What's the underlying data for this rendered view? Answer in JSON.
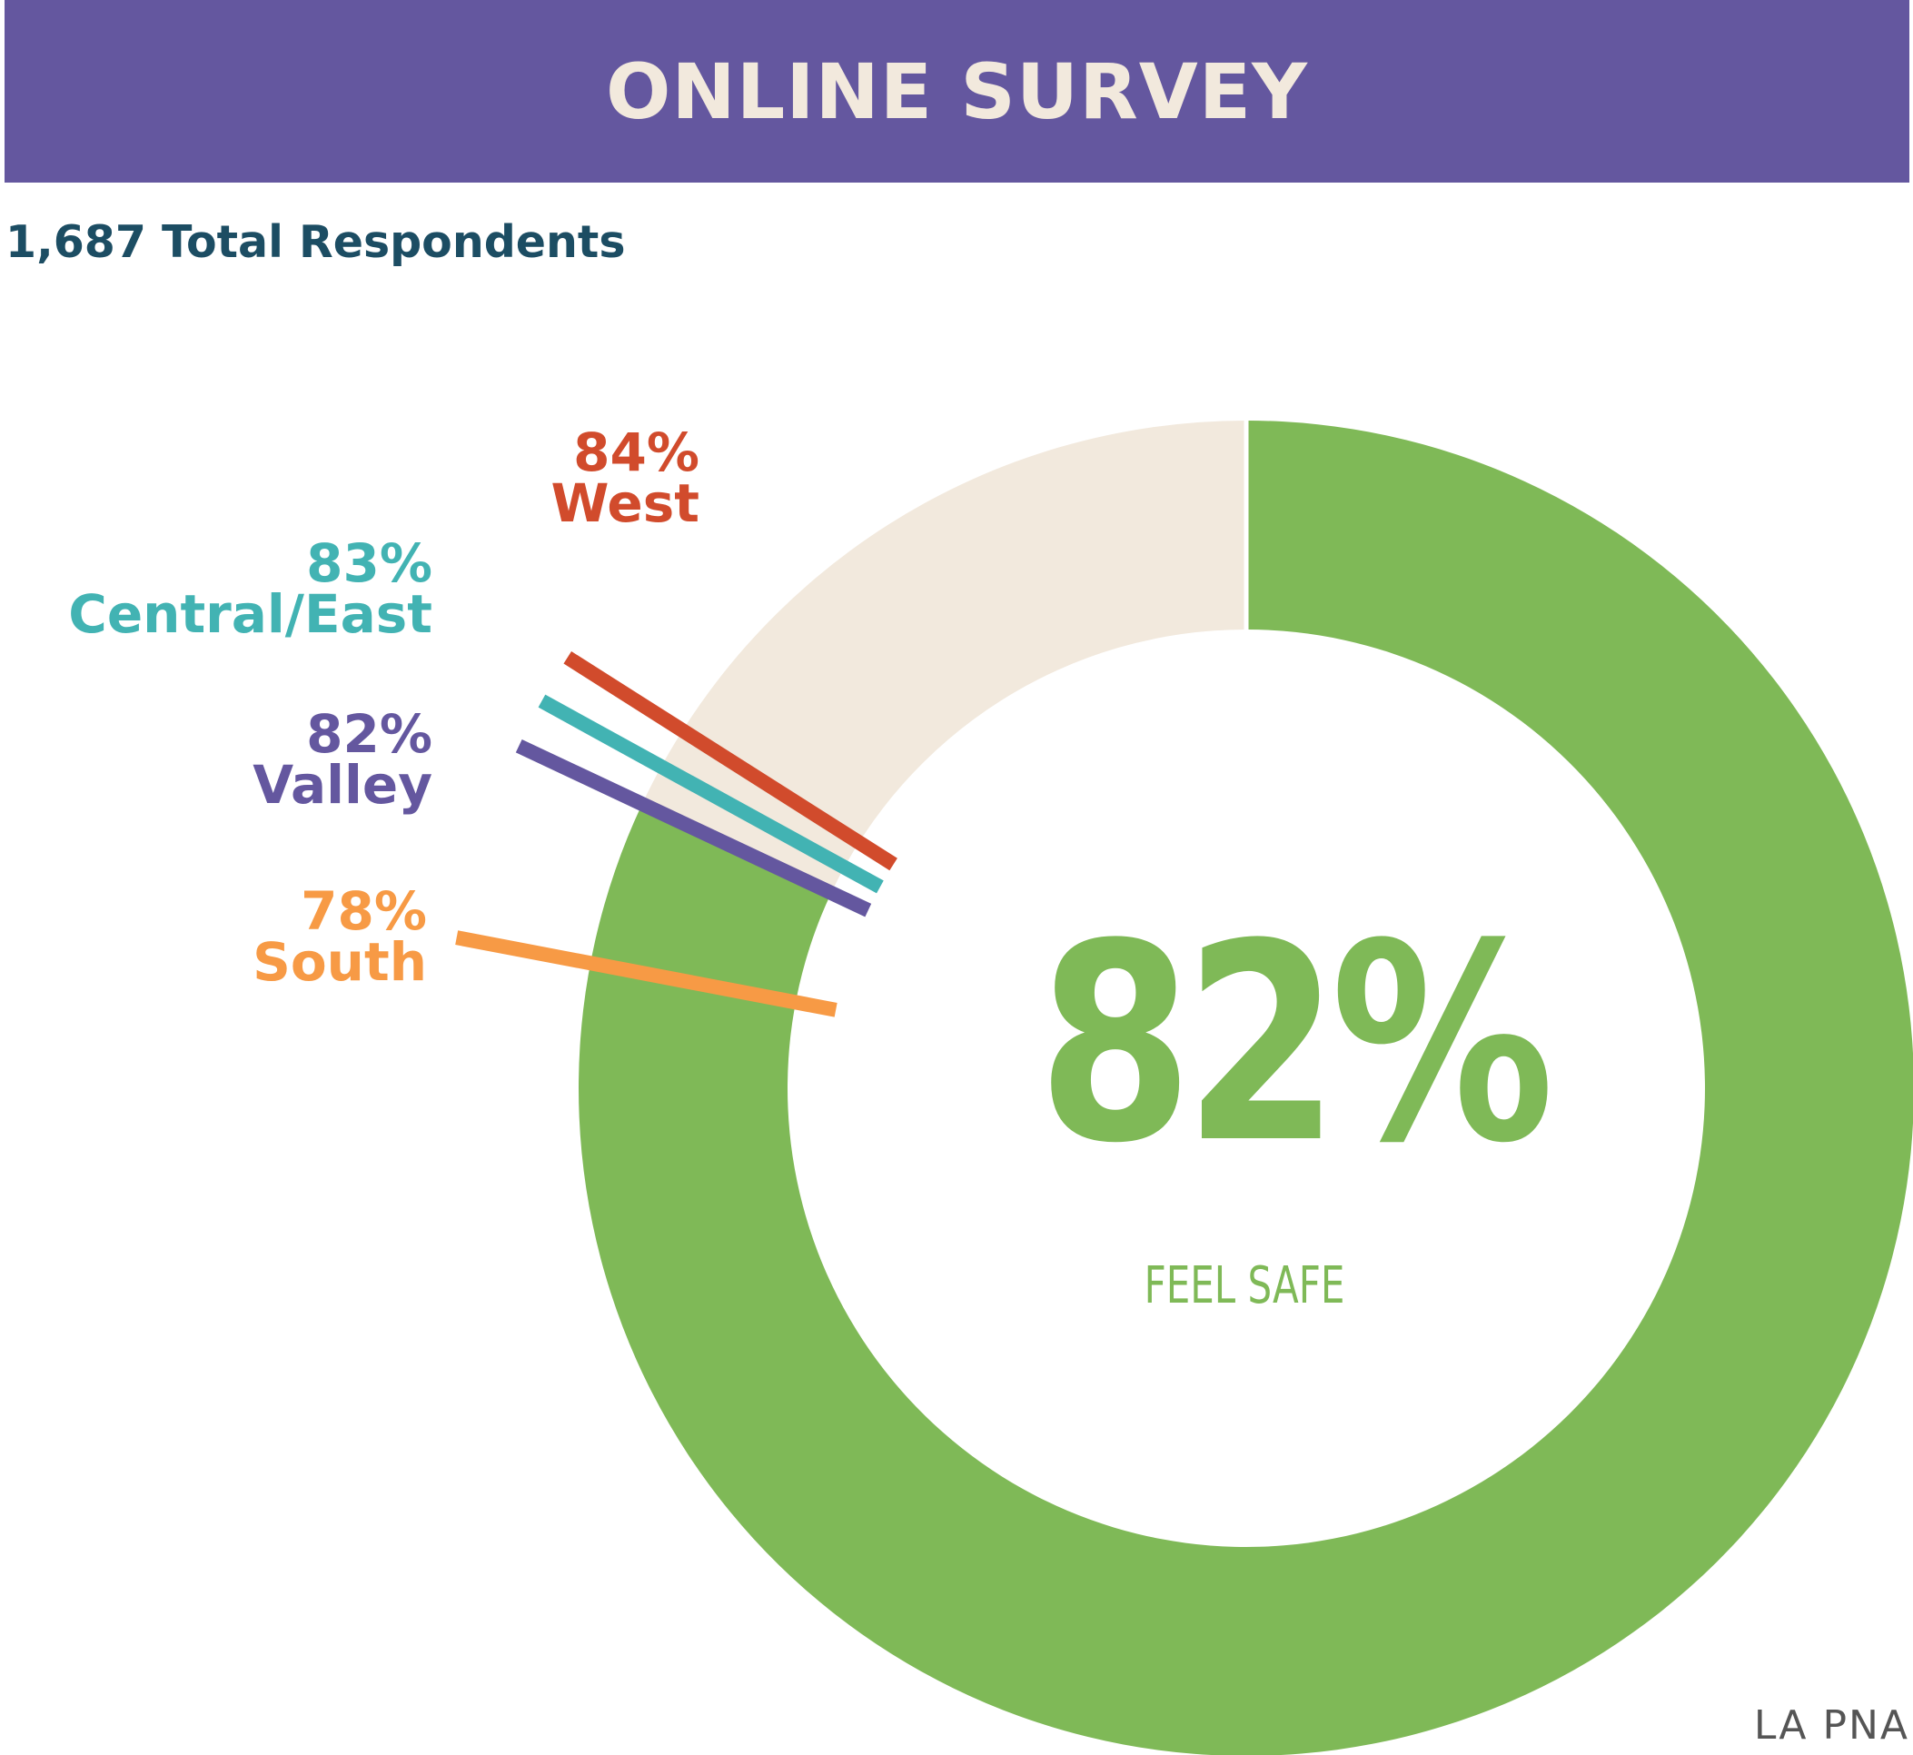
{
  "header": {
    "title": "ONLINE SURVEY"
  },
  "subtitle": "1,687 Total Respondents",
  "source": "LA PNA",
  "colors": {
    "banner": "#64579f",
    "feel_safe": "#7fb957",
    "remainder": "#f2e9dd",
    "west": "#d14b2c",
    "central_east": "#42b3b3",
    "valley": "#64579f",
    "south": "#f79a45"
  },
  "chart_data": {
    "type": "pie",
    "donut": true,
    "center_value": "82%",
    "center_label": "FEEL SAFE",
    "slices": [
      {
        "label": "FEEL SAFE",
        "value": 82,
        "color": "#7fb957"
      },
      {
        "label": "",
        "value": 18,
        "color": "#f2e9dd"
      }
    ],
    "regions": [
      {
        "name": "West",
        "value": 84,
        "value_label": "84%",
        "color": "#d14b2c"
      },
      {
        "name": "Central/East",
        "value": 83,
        "value_label": "83%",
        "color": "#42b3b3"
      },
      {
        "name": "Valley",
        "value": 82,
        "value_label": "82%",
        "color": "#64579f"
      },
      {
        "name": "South",
        "value": 78,
        "value_label": "78%",
        "color": "#f79a45"
      }
    ]
  }
}
